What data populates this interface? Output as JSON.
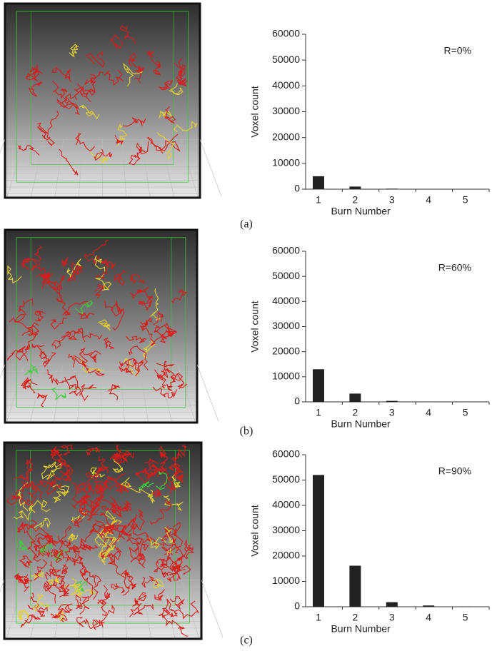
{
  "chart_data": [
    {
      "type": "bar",
      "panel_label": "(a)",
      "annotation": "R=0%",
      "x_label": "Burn Number",
      "y_label": "Voxel count",
      "categories": [
        "1",
        "2",
        "3",
        "4",
        "5"
      ],
      "values": [
        5000,
        1000,
        200,
        0,
        0
      ],
      "color": "#222222",
      "ylim": [
        0,
        60000
      ],
      "yticks": [
        0,
        10000,
        20000,
        30000,
        40000,
        50000,
        60000
      ]
    },
    {
      "type": "bar",
      "panel_label": "(b)",
      "annotation": "R=60%",
      "x_label": "Burn Number",
      "y_label": "Voxel count",
      "categories": [
        "1",
        "2",
        "3",
        "4",
        "5"
      ],
      "values": [
        13000,
        3300,
        400,
        100,
        100
      ],
      "color": "#222222",
      "ylim": [
        0,
        60000
      ],
      "yticks": [
        0,
        10000,
        20000,
        30000,
        40000,
        50000,
        60000
      ]
    },
    {
      "type": "bar",
      "panel_label": "(c)",
      "annotation": "R=90%",
      "x_label": "Burn Number",
      "y_label": "Voxel count",
      "categories": [
        "1",
        "2",
        "3",
        "4",
        "5"
      ],
      "values": [
        52000,
        16200,
        1800,
        500,
        100
      ],
      "color": "#222222",
      "ylim": [
        0,
        60000
      ],
      "yticks": [
        0,
        10000,
        20000,
        30000,
        40000,
        50000,
        60000
      ]
    }
  ]
}
